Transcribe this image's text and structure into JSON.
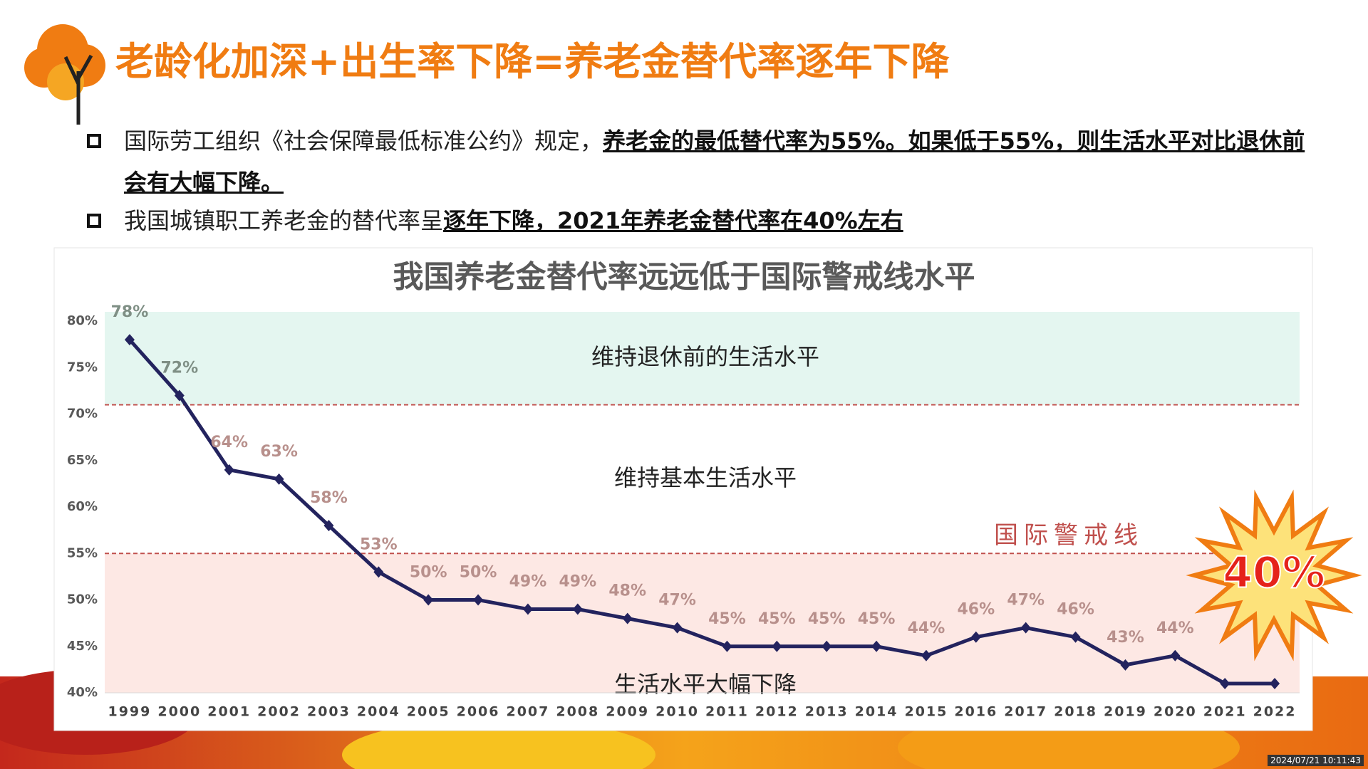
{
  "header": {
    "title": "老龄化加深+出生率下降=养老金替代率逐年下降"
  },
  "bullets": [
    {
      "text": "国际劳工组织《社会保障最低标准公约》规定，",
      "emphasis": "养老金的最低替代率为55%。如果低于55%，则生活水平对比退休前会有大幅下降。"
    },
    {
      "text": "我国城镇职工养老金的替代率呈",
      "emphasis": "逐年下降，2021年养老金替代率在40%左右"
    }
  ],
  "chart_data": {
    "type": "line",
    "title": "我国养老金替代率远远低于国际警戒线水平",
    "categories": [
      "1999",
      "2000",
      "2001",
      "2002",
      "2003",
      "2004",
      "2005",
      "2006",
      "2007",
      "2008",
      "2009",
      "2010",
      "2011",
      "2012",
      "2013",
      "2014",
      "2015",
      "2016",
      "2017",
      "2018",
      "2019",
      "2020",
      "2021",
      "2022"
    ],
    "series": [
      {
        "name": "养老金替代率",
        "color": "#23235e",
        "values": [
          78,
          72,
          64,
          63,
          58,
          53,
          50,
          50,
          49,
          49,
          48,
          47,
          45,
          45,
          45,
          45,
          44,
          46,
          47,
          46,
          43,
          44,
          41,
          41
        ],
        "value_labels": [
          "78%",
          "72%",
          "64%",
          "63%",
          "58%",
          "53%",
          "50%",
          "50%",
          "49%",
          "49%",
          "48%",
          "47%",
          "45%",
          "45%",
          "45%",
          "45%",
          "44%",
          "46%",
          "47%",
          "46%",
          "43%",
          "44%",
          null,
          null
        ]
      }
    ],
    "ylim": [
      40,
      81
    ],
    "yticks": [
      {
        "value": 40,
        "label": "40%"
      },
      {
        "value": 45,
        "label": "45%"
      },
      {
        "value": 50,
        "label": "50%"
      },
      {
        "value": 55,
        "label": "55%"
      },
      {
        "value": 60,
        "label": "60%"
      },
      {
        "value": 65,
        "label": "65%"
      },
      {
        "value": 70,
        "label": "70%"
      },
      {
        "value": 75,
        "label": "75%"
      },
      {
        "value": 80,
        "label": "80%"
      }
    ],
    "bands": [
      {
        "from": 71,
        "to": 81,
        "label": "维持退休前的生活水平",
        "color": "#e4f6f0"
      },
      {
        "from": 55,
        "to": 71,
        "label": "维持基本生活水平",
        "color": "#ffffff"
      },
      {
        "from": 40,
        "to": 55,
        "label": "生活水平大幅下降",
        "color": "#fde8e4"
      }
    ],
    "reference_lines": [
      {
        "value": 71,
        "color": "#c0504d"
      },
      {
        "value": 55,
        "color": "#c0504d",
        "label": "国际警戒线"
      }
    ],
    "annotation": "40%"
  },
  "timestamp": "2024/07/21 10:11:43"
}
